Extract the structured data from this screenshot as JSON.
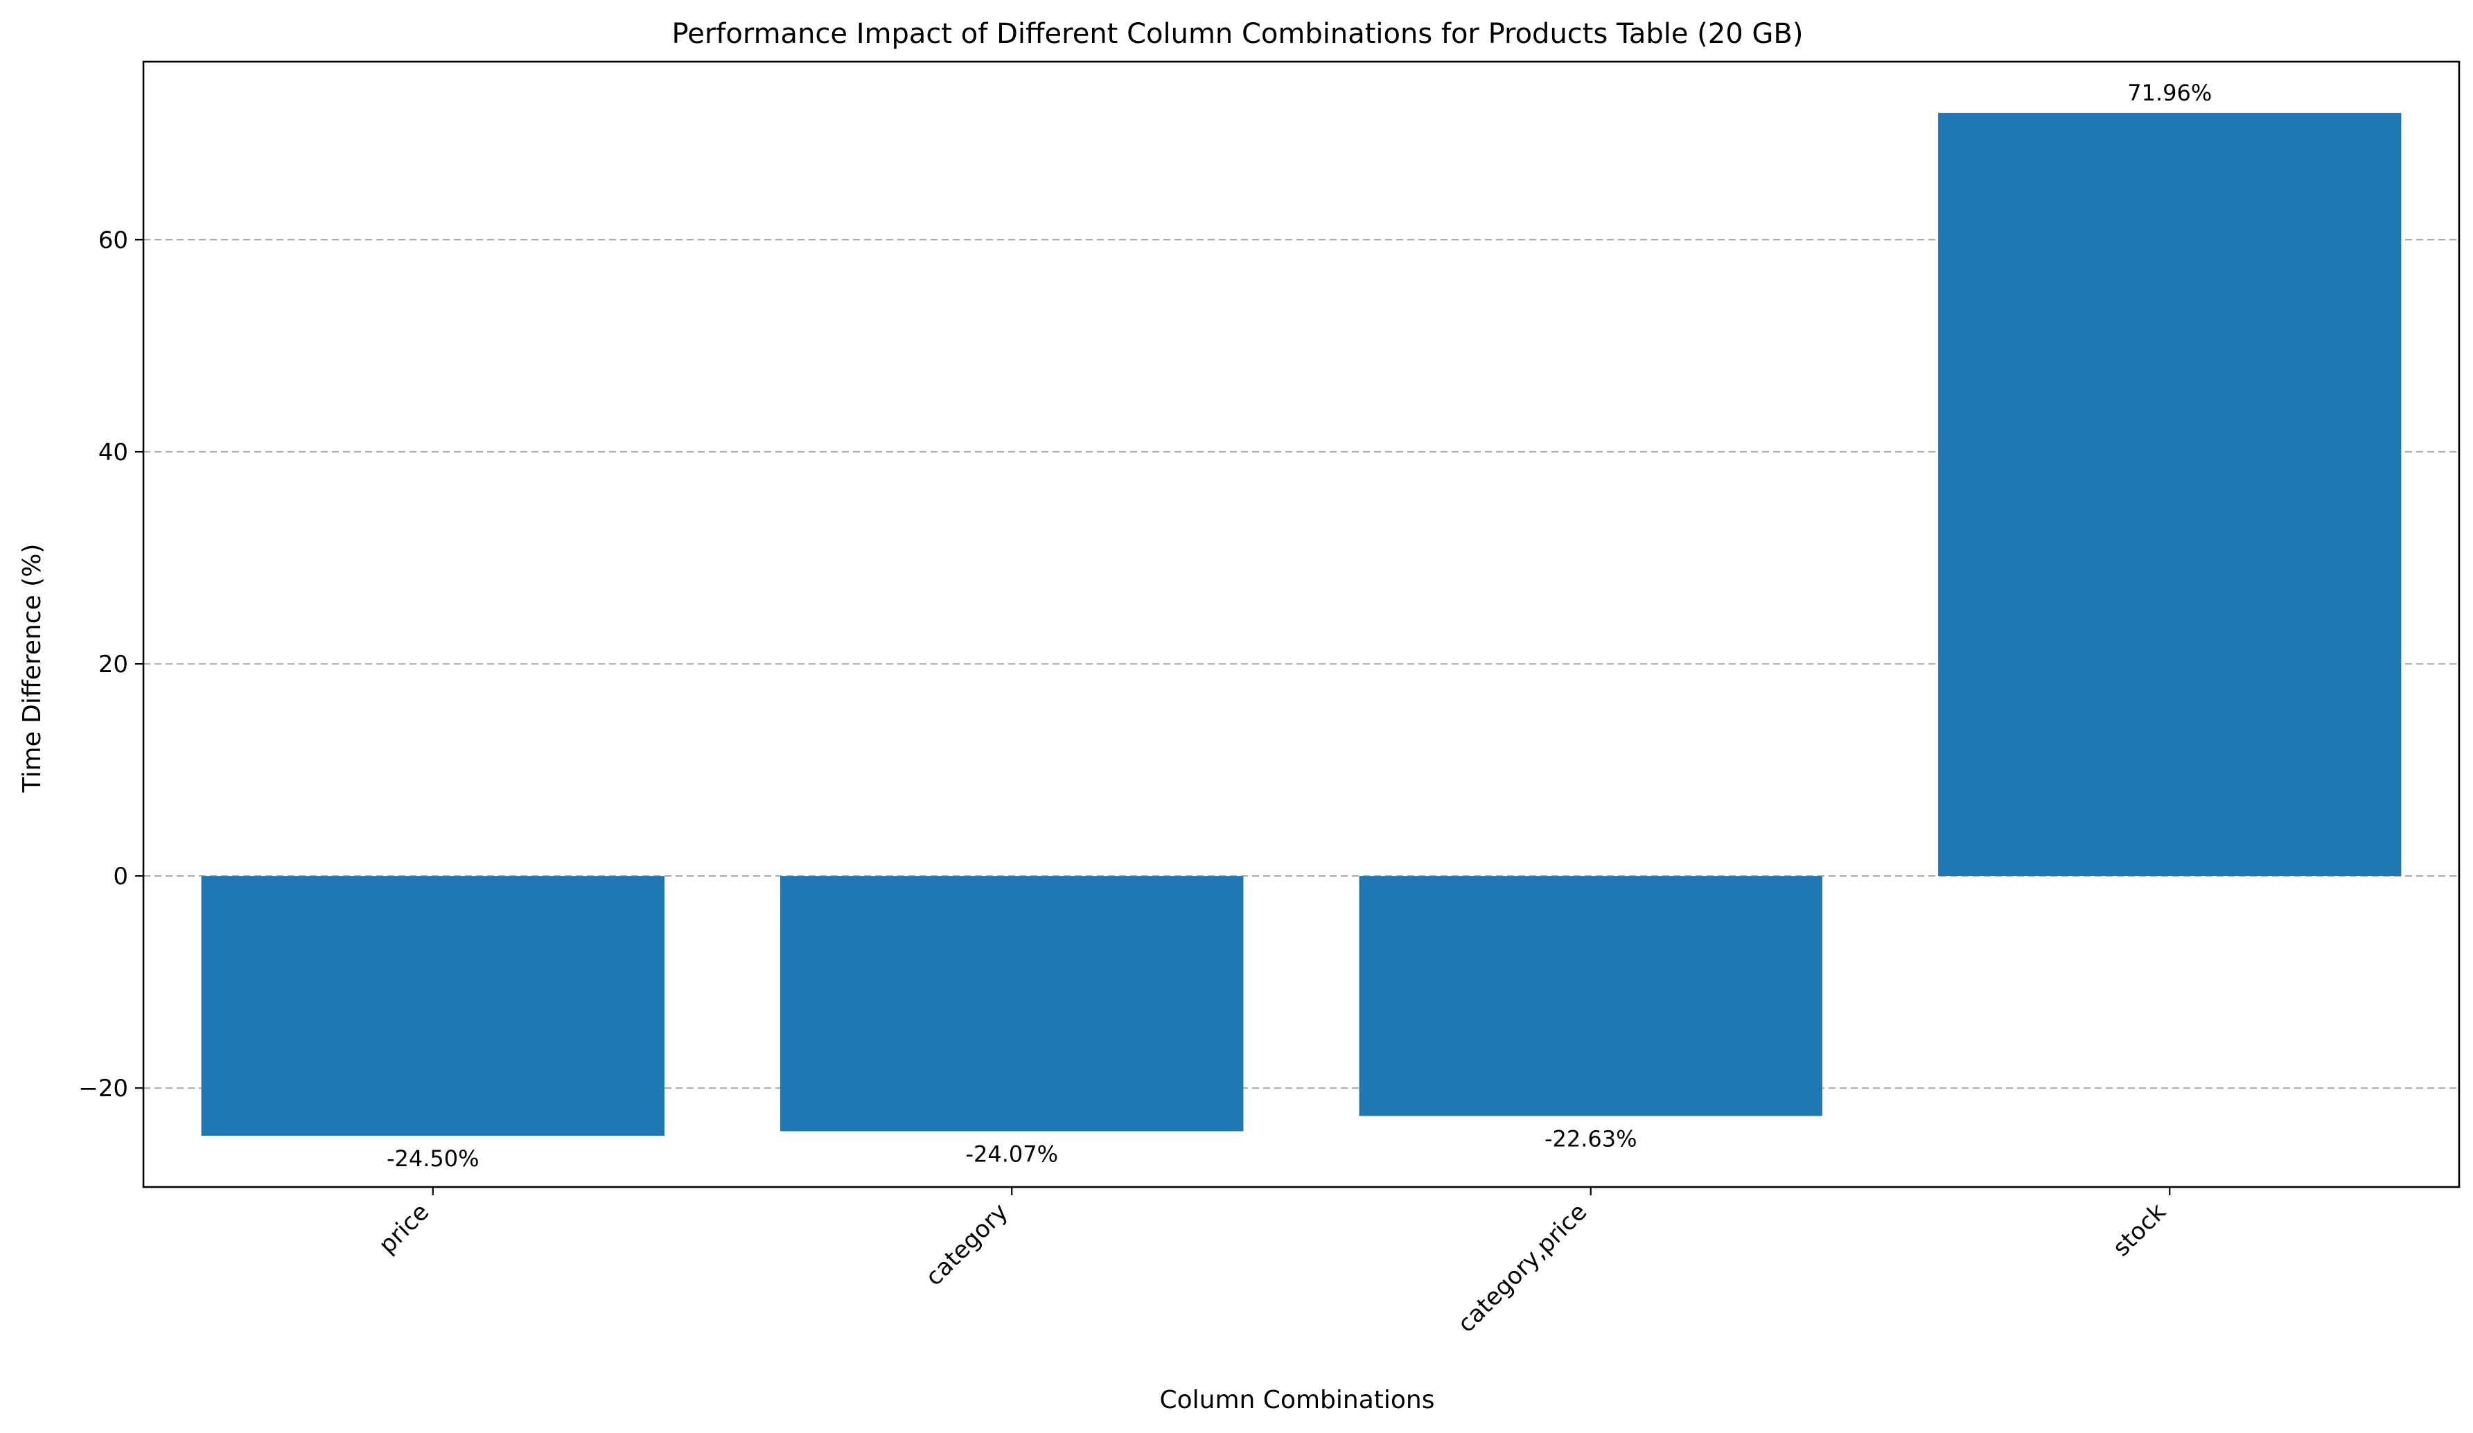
{
  "chart_data": {
    "type": "bar",
    "title": "Performance Impact of Different Column Combinations for Products Table (20 GB)",
    "xlabel": "Column Combinations",
    "ylabel": "Time Difference (%)",
    "categories": [
      "price",
      "category",
      "category,price",
      "stock"
    ],
    "values": [
      -24.5,
      -24.07,
      -22.63,
      71.96
    ],
    "value_labels": [
      "-24.50%",
      "-24.07%",
      "-22.63%",
      "71.96%"
    ],
    "ylim": [
      -29.33,
      76.79
    ],
    "yticks": [
      -20,
      0,
      20,
      40,
      60
    ],
    "ytick_labels": [
      "−20",
      "0",
      "20",
      "40",
      "60"
    ],
    "grid": true,
    "bar_color": "#1f77b4",
    "x_tick_rotation": "45 degrees"
  }
}
